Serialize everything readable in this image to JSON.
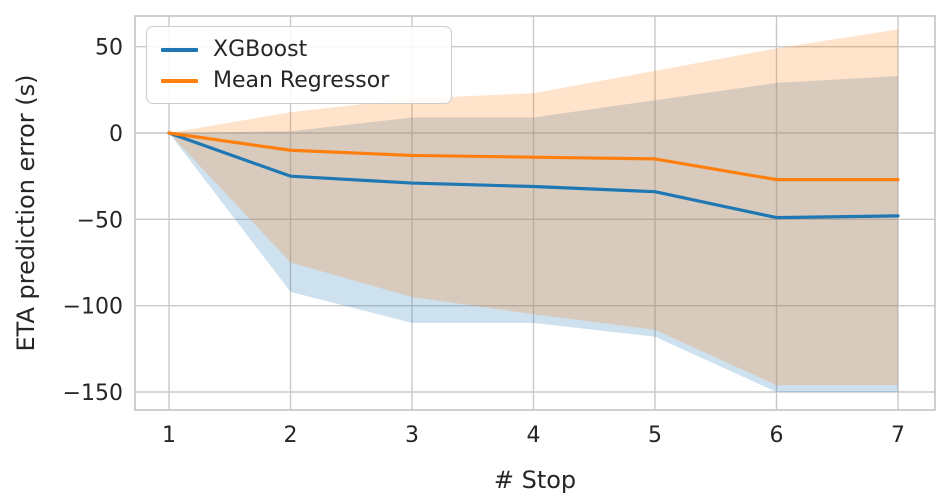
{
  "chart_data": {
    "type": "line",
    "title": "",
    "xlabel": "# Stop",
    "ylabel": "ETA prediction error (s)",
    "x": [
      1,
      2,
      3,
      4,
      5,
      6,
      7
    ],
    "xtick_labels": [
      "1",
      "2",
      "3",
      "4",
      "5",
      "6",
      "7"
    ],
    "yticks": [
      50,
      0,
      -50,
      -100,
      -150
    ],
    "ytick_labels": [
      "50",
      "0",
      "−50",
      "−100",
      "−150"
    ],
    "xlim": [
      0.72,
      7.3
    ],
    "ylim": [
      -160,
      68
    ],
    "grid": true,
    "legend_position": "upper-left",
    "background_color": "#ffffff",
    "grid_color": "#c9c9c9",
    "spine_color": "#c4c4c4",
    "text_color": "#262626",
    "series": [
      {
        "name": "XGBoost",
        "color": "#1f77b4",
        "values": [
          0,
          -25,
          -29,
          -31,
          -34,
          -49,
          -48
        ],
        "band_upper": [
          0,
          1,
          9,
          9,
          19,
          29,
          33
        ],
        "band_lower": [
          0,
          -92,
          -110,
          -110,
          -118,
          -150,
          -150
        ],
        "band_opacity": 0.22
      },
      {
        "name": "Mean Regressor",
        "color": "#ff7f0e",
        "values": [
          0,
          -10,
          -13,
          -14,
          -15,
          -27,
          -27
        ],
        "band_upper": [
          0,
          12,
          20,
          23,
          36,
          49,
          60
        ],
        "band_lower": [
          0,
          -75,
          -95,
          -105,
          -114,
          -146,
          -146
        ],
        "band_opacity": 0.22
      }
    ]
  }
}
